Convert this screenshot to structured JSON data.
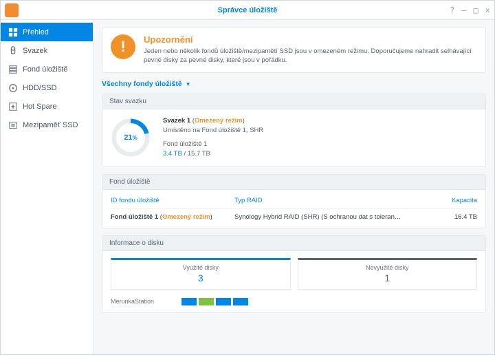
{
  "window_title": "Správce úložiště",
  "sidebar": {
    "items": [
      {
        "label": "Přehled"
      },
      {
        "label": "Svazek"
      },
      {
        "label": "Fond úložiště"
      },
      {
        "label": "HDD/SSD"
      },
      {
        "label": "Hot Spare"
      },
      {
        "label": "Mezipaměť SSD"
      }
    ]
  },
  "alert": {
    "title": "Upozornění",
    "text": "Jeden nebo několik fondů úložiště/mezipamětí SSD jsou v omezeném režimu. Doporučujeme nahradit selhávající pevné disky za pevné disky, které jsou v pořádku."
  },
  "filter_label": "Všechny fondy úložiště",
  "volume_section_title": "Stav svazku",
  "volume": {
    "percent": 21,
    "percent_label": "21",
    "name": "Svazek 1",
    "status": "Omezený režim",
    "location": "Umístěno na Fond úložiště 1, SHR",
    "pool_name": "Fond úložiště 1",
    "used": "3.4 TB",
    "total": "15.7 TB",
    "ring_bg": "#e8ecef",
    "ring_fg": "#0086e5"
  },
  "pool_section_title": "Fond úložiště",
  "pool_table": {
    "headers": {
      "id": "ID fondu úložiště",
      "type": "Typ RAID",
      "cap": "Kapacita"
    },
    "row": {
      "name": "Fond úložiště 1",
      "status": "Omezený režim",
      "raid": "Synology Hybrid RAID (SHR) (S ochranou dat s toleran…",
      "cap": "16.4 TB"
    }
  },
  "disk_section_title": "Informace o disku",
  "disks": {
    "used_label": "Využité disky",
    "used_count": "3",
    "unused_label": "Nevyužité disky",
    "unused_count": "1"
  },
  "station_name": "MerunkaStation",
  "block_colors": [
    "#0086e5",
    "#7cc243",
    "#0086e5",
    "#0086e5"
  ]
}
